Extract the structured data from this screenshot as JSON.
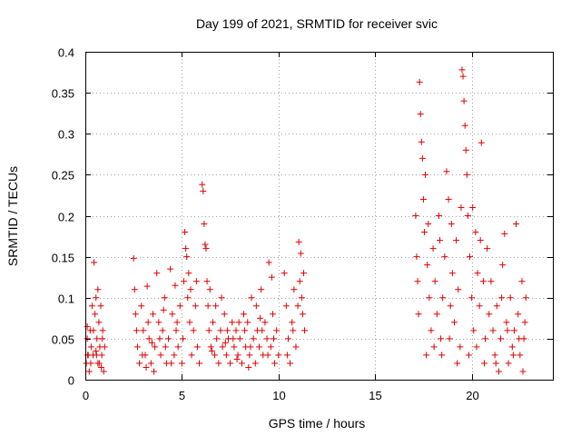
{
  "chart_data": {
    "type": "scatter",
    "title": "Day 199 of 2021, SRMTID for receiver svic",
    "xlabel": "GPS time / hours",
    "ylabel": "SRMTID / TECUs",
    "xlim": [
      0,
      24.2
    ],
    "ylim": [
      0,
      0.4
    ],
    "xticks": [
      0,
      5,
      10,
      15,
      20
    ],
    "xtick_labels": [
      "0",
      "5",
      "10",
      "15",
      "20"
    ],
    "yticks": [
      0,
      0.05,
      0.1,
      0.15,
      0.2,
      0.25,
      0.3,
      0.35,
      0.4
    ],
    "ytick_labels": [
      "0",
      "0.05",
      "0.1",
      "0.15",
      "0.2",
      "0.25",
      "0.3",
      "0.35",
      "0.4"
    ],
    "grid": true,
    "marker": "+",
    "marker_color": "#e00000",
    "series": [
      {
        "name": "SRMTID",
        "points": [
          [
            0.05,
            0.02
          ],
          [
            0.1,
            0.05
          ],
          [
            0.15,
            0.03
          ],
          [
            0.2,
            0.01
          ],
          [
            0.25,
            0.06
          ],
          [
            0.3,
            0.04
          ],
          [
            0.35,
            0.09
          ],
          [
            0.4,
            0.03
          ],
          [
            0.45,
            0.143
          ],
          [
            0.5,
            0.08
          ],
          [
            0.55,
            0.1
          ],
          [
            0.6,
            0.05
          ],
          [
            0.65,
            0.02
          ],
          [
            0.7,
            0.07
          ],
          [
            0.75,
            0.04
          ],
          [
            0.8,
            0.09
          ],
          [
            0.85,
            0.03
          ],
          [
            0.9,
            0.06
          ],
          [
            0.95,
            0.01
          ],
          [
            1.0,
            0.04
          ],
          [
            0.12,
            0.03
          ],
          [
            0.28,
            0.02
          ],
          [
            0.42,
            0.06
          ],
          [
            0.58,
            0.03
          ],
          [
            0.72,
            0.02
          ],
          [
            0.88,
            0.05
          ],
          [
            0.1,
            0.065
          ],
          [
            0.55,
            0.035
          ],
          [
            0.65,
            0.11
          ],
          [
            0.82,
            0.015
          ],
          [
            2.5,
            0.148
          ],
          [
            2.55,
            0.11
          ],
          [
            2.6,
            0.08
          ],
          [
            2.7,
            0.04
          ],
          [
            2.8,
            0.02
          ],
          [
            2.9,
            0.09
          ],
          [
            3.0,
            0.06
          ],
          [
            3.1,
            0.03
          ],
          [
            3.2,
            0.114
          ],
          [
            3.3,
            0.05
          ],
          [
            3.4,
            0.02
          ],
          [
            3.5,
            0.08
          ],
          [
            3.6,
            0.04
          ],
          [
            3.7,
            0.13
          ],
          [
            3.8,
            0.07
          ],
          [
            3.9,
            0.03
          ],
          [
            4.0,
            0.06
          ],
          [
            4.1,
            0.1
          ],
          [
            4.2,
            0.02
          ],
          [
            4.3,
            0.05
          ],
          [
            4.4,
            0.135
          ],
          [
            4.5,
            0.08
          ],
          [
            4.6,
            0.03
          ],
          [
            4.7,
            0.06
          ],
          [
            4.8,
            0.04
          ],
          [
            4.9,
            0.09
          ],
          [
            5.0,
            0.02
          ],
          [
            5.1,
            0.12
          ],
          [
            5.15,
            0.18
          ],
          [
            5.2,
            0.16
          ],
          [
            5.25,
            0.15
          ],
          [
            5.3,
            0.1
          ],
          [
            5.35,
            0.13
          ],
          [
            5.4,
            0.07
          ],
          [
            5.5,
            0.03
          ],
          [
            5.6,
            0.06
          ],
          [
            5.7,
            0.09
          ],
          [
            5.8,
            0.04
          ],
          [
            5.9,
            0.02
          ],
          [
            2.65,
            0.06
          ],
          [
            2.95,
            0.03
          ],
          [
            3.25,
            0.07
          ],
          [
            3.55,
            0.01
          ],
          [
            3.85,
            0.05
          ],
          [
            4.15,
            0.04
          ],
          [
            4.45,
            0.02
          ],
          [
            4.75,
            0.07
          ],
          [
            5.05,
            0.05
          ],
          [
            5.45,
            0.11
          ],
          [
            5.75,
            0.12
          ],
          [
            3.15,
            0.015
          ],
          [
            3.45,
            0.045
          ],
          [
            4.05,
            0.085
          ],
          [
            4.65,
            0.115
          ],
          [
            6.05,
            0.238
          ],
          [
            6.1,
            0.23
          ],
          [
            6.15,
            0.19
          ],
          [
            6.2,
            0.165
          ],
          [
            6.25,
            0.16
          ],
          [
            6.3,
            0.12
          ],
          [
            6.35,
            0.09
          ],
          [
            6.4,
            0.06
          ],
          [
            6.5,
            0.04
          ],
          [
            6.6,
            0.07
          ],
          [
            6.7,
            0.03
          ],
          [
            6.8,
            0.05
          ],
          [
            6.9,
            0.02
          ],
          [
            7.0,
            0.06
          ],
          [
            7.1,
            0.04
          ],
          [
            7.2,
            0.08
          ],
          [
            7.3,
            0.03
          ],
          [
            7.4,
            0.05
          ],
          [
            7.5,
            0.02
          ],
          [
            7.6,
            0.07
          ],
          [
            7.7,
            0.04
          ],
          [
            7.8,
            0.06
          ],
          [
            7.9,
            0.03
          ],
          [
            8.0,
            0.05
          ],
          [
            8.1,
            0.02
          ],
          [
            8.2,
            0.08
          ],
          [
            8.3,
            0.04
          ],
          [
            8.4,
            0.07
          ],
          [
            8.5,
            0.03
          ],
          [
            8.6,
            0.1
          ],
          [
            8.7,
            0.05
          ],
          [
            8.8,
            0.02
          ],
          [
            8.9,
            0.06
          ],
          [
            9.0,
            0.04
          ],
          [
            9.1,
            0.11
          ],
          [
            9.2,
            0.03
          ],
          [
            9.3,
            0.07
          ],
          [
            9.4,
            0.05
          ],
          [
            9.5,
            0.143
          ],
          [
            9.6,
            0.04
          ],
          [
            9.7,
            0.08
          ],
          [
            9.8,
            0.02
          ],
          [
            9.9,
            0.06
          ],
          [
            10.0,
            0.03
          ],
          [
            6.45,
            0.11
          ],
          [
            6.75,
            0.09
          ],
          [
            7.05,
            0.1
          ],
          [
            7.35,
            0.06
          ],
          [
            7.65,
            0.05
          ],
          [
            7.95,
            0.07
          ],
          [
            8.25,
            0.06
          ],
          [
            8.55,
            0.04
          ],
          [
            8.85,
            0.09
          ],
          [
            9.15,
            0.06
          ],
          [
            9.45,
            0.03
          ],
          [
            9.75,
            0.05
          ],
          [
            6.55,
            0.035
          ],
          [
            7.25,
            0.045
          ],
          [
            7.85,
            0.025
          ],
          [
            8.45,
            0.015
          ],
          [
            9.05,
            0.075
          ],
          [
            9.65,
            0.125
          ],
          [
            10.3,
            0.13
          ],
          [
            10.4,
            0.09
          ],
          [
            10.5,
            0.05
          ],
          [
            10.6,
            0.02
          ],
          [
            10.7,
            0.07
          ],
          [
            10.8,
            0.11
          ],
          [
            10.9,
            0.04
          ],
          [
            11.0,
            0.09
          ],
          [
            11.05,
            0.168
          ],
          [
            11.1,
            0.12
          ],
          [
            11.2,
            0.1
          ],
          [
            11.25,
            0.08
          ],
          [
            11.3,
            0.13
          ],
          [
            11.35,
            0.06
          ],
          [
            10.45,
            0.03
          ],
          [
            10.75,
            0.06
          ],
          [
            11.15,
            0.154
          ],
          [
            17.1,
            0.2
          ],
          [
            17.15,
            0.15
          ],
          [
            17.2,
            0.12
          ],
          [
            17.25,
            0.08
          ],
          [
            17.3,
            0.363
          ],
          [
            17.35,
            0.324
          ],
          [
            17.4,
            0.29
          ],
          [
            17.45,
            0.27
          ],
          [
            17.5,
            0.22
          ],
          [
            17.55,
            0.18
          ],
          [
            17.6,
            0.25
          ],
          [
            17.7,
            0.14
          ],
          [
            17.8,
            0.1
          ],
          [
            17.9,
            0.06
          ],
          [
            18.0,
            0.16
          ],
          [
            18.1,
            0.12
          ],
          [
            18.2,
            0.08
          ],
          [
            18.3,
            0.2
          ],
          [
            18.4,
            0.05
          ],
          [
            18.5,
            0.1
          ],
          [
            18.6,
            0.15
          ],
          [
            18.7,
            0.254
          ],
          [
            18.8,
            0.22
          ],
          [
            18.9,
            0.09
          ],
          [
            19.0,
            0.13
          ],
          [
            19.1,
            0.07
          ],
          [
            19.2,
            0.17
          ],
          [
            19.3,
            0.11
          ],
          [
            19.4,
            0.04
          ],
          [
            19.5,
            0.378
          ],
          [
            19.55,
            0.37
          ],
          [
            19.6,
            0.34
          ],
          [
            19.65,
            0.31
          ],
          [
            19.7,
            0.28
          ],
          [
            19.75,
            0.25
          ],
          [
            19.8,
            0.2
          ],
          [
            19.9,
            0.15
          ],
          [
            20.0,
            0.1
          ],
          [
            20.1,
            0.06
          ],
          [
            20.2,
            0.18
          ],
          [
            20.3,
            0.13
          ],
          [
            20.4,
            0.09
          ],
          [
            20.5,
            0.289
          ],
          [
            20.6,
            0.12
          ],
          [
            20.7,
            0.05
          ],
          [
            20.8,
            0.16
          ],
          [
            20.9,
            0.08
          ],
          [
            17.65,
            0.03
          ],
          [
            18.05,
            0.04
          ],
          [
            18.45,
            0.03
          ],
          [
            18.85,
            0.05
          ],
          [
            19.25,
            0.02
          ],
          [
            19.85,
            0.03
          ],
          [
            20.25,
            0.04
          ],
          [
            20.65,
            0.02
          ],
          [
            17.75,
            0.19
          ],
          [
            18.35,
            0.17
          ],
          [
            18.95,
            0.19
          ],
          [
            19.45,
            0.21
          ],
          [
            20.05,
            0.21
          ],
          [
            20.45,
            0.17
          ],
          [
            21.0,
            0.12
          ],
          [
            21.1,
            0.06
          ],
          [
            21.2,
            0.03
          ],
          [
            21.3,
            0.09
          ],
          [
            21.4,
            0.01
          ],
          [
            21.5,
            0.05
          ],
          [
            21.6,
            0.14
          ],
          [
            21.7,
            0.178
          ],
          [
            21.8,
            0.07
          ],
          [
            21.9,
            0.02
          ],
          [
            22.0,
            0.1
          ],
          [
            22.1,
            0.04
          ],
          [
            22.2,
            0.06
          ],
          [
            22.3,
            0.19
          ],
          [
            22.4,
            0.08
          ],
          [
            22.5,
            0.03
          ],
          [
            22.6,
            0.12
          ],
          [
            22.7,
            0.05
          ],
          [
            22.8,
            0.1
          ],
          [
            21.25,
            0.02
          ],
          [
            21.55,
            0.1
          ],
          [
            21.85,
            0.06
          ],
          [
            22.15,
            0.03
          ],
          [
            22.45,
            0.05
          ],
          [
            22.75,
            0.07
          ],
          [
            22.65,
            0.01
          ]
        ]
      }
    ]
  }
}
